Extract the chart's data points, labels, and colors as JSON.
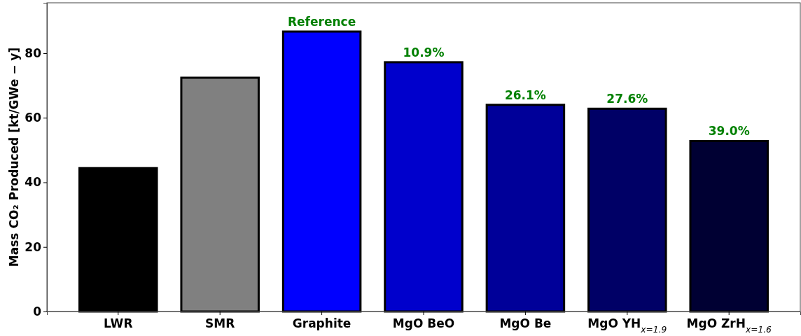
{
  "chart_data": {
    "type": "bar",
    "ylabel": "Mass CO₂ Produced [kt/GWe − y]",
    "categories": [
      "LWR",
      "SMR",
      "Graphite",
      "MgO BeO",
      "MgO Be",
      "MgO YH$_{x=1.9}$",
      "MgO ZrH$_{x=1.6}$"
    ],
    "values": [
      44.4,
      72.4,
      86.7,
      77.2,
      64.0,
      62.8,
      52.8
    ],
    "colors": [
      "#000000",
      "#808080",
      "#0000ff",
      "#0000cc",
      "#000099",
      "#000066",
      "#000033"
    ],
    "ylim": [
      0,
      95.6
    ],
    "yticks": [
      0,
      20,
      40,
      60,
      80
    ],
    "grid": false,
    "annotations": [
      {
        "text": "Reference",
        "x": "Graphite",
        "y": 86.7
      },
      {
        "text": "10.9%",
        "x": "MgO BeO",
        "y": 77.2
      },
      {
        "text": "26.1%",
        "x": "MgO Be",
        "y": 64.0
      },
      {
        "text": "27.6%",
        "x": "MgO YH$_{x=1.9}$",
        "y": 62.8
      },
      {
        "text": "39.0%",
        "x": "MgO ZrH$_{x=1.6}$",
        "y": 52.8
      }
    ]
  }
}
